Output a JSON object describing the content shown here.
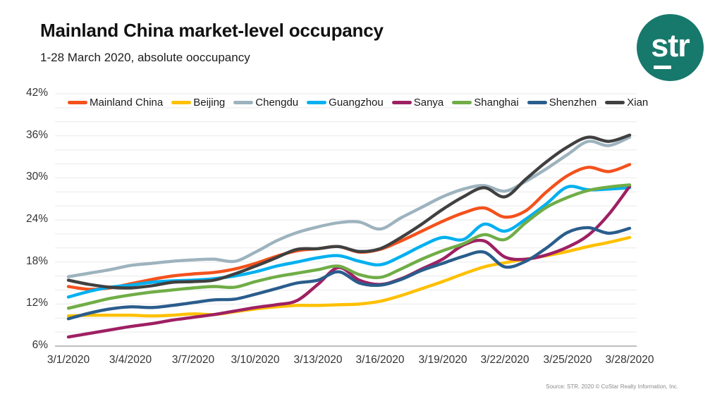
{
  "header": {
    "title": "Mainland China market-level occupancy",
    "subtitle": "1-28 March 2020, absolute ooccupancy"
  },
  "logo": {
    "text": "str",
    "color": "#17796B"
  },
  "source_note": "Source: STR. 2020 © CoStar Realty Information, Inc.",
  "chart_data": {
    "type": "line",
    "title": "Mainland China market-level occupancy",
    "subtitle": "1-28 March 2020, absolute ooccupancy",
    "x_start": "3/1/2020",
    "x_end": "3/28/2020",
    "points_per_series": 28,
    "x_labels": [
      "3/1/2020",
      "3/4/2020",
      "3/7/2020",
      "3/10/2020",
      "3/13/2020",
      "3/16/2020",
      "3/19/2020",
      "3/22/2020",
      "3/25/2020",
      "3/28/2020"
    ],
    "x_label_days": [
      1,
      4,
      7,
      10,
      13,
      16,
      19,
      22,
      25,
      28
    ],
    "y_ticks": [
      "42%",
      "36%",
      "30%",
      "24%",
      "18%",
      "12%",
      "6%"
    ],
    "ylim": [
      6,
      42
    ],
    "ytick_step": 6,
    "minor_grid_step": 2,
    "grid": "horizontal",
    "legend_position": "top",
    "axis_color": "#A8A8A8",
    "grid_color": "#E9E9E9",
    "series": [
      {
        "name": "Mainland China",
        "color": "#F4511C",
        "values": [
          14.5,
          14.1,
          14.3,
          14.9,
          15.5,
          16.0,
          16.3,
          16.5,
          17.0,
          17.8,
          18.8,
          19.6,
          19.9,
          20.2,
          19.4,
          19.8,
          21.0,
          22.4,
          23.8,
          25.0,
          25.7,
          24.4,
          25.3,
          28.0,
          30.3,
          31.5,
          30.9,
          31.9
        ]
      },
      {
        "name": "Beijing",
        "color": "#FFC000",
        "values": [
          10.3,
          10.4,
          10.4,
          10.4,
          10.3,
          10.4,
          10.6,
          10.5,
          10.9,
          11.3,
          11.6,
          11.8,
          11.8,
          11.9,
          12.0,
          12.4,
          13.2,
          14.2,
          15.2,
          16.3,
          17.3,
          17.9,
          18.4,
          18.9,
          19.5,
          20.2,
          20.8,
          21.5
        ]
      },
      {
        "name": "Chengdu",
        "color": "#9DB3BE",
        "values": [
          15.9,
          16.4,
          16.9,
          17.5,
          17.8,
          18.1,
          18.3,
          18.4,
          18.1,
          19.4,
          21.0,
          22.2,
          23.0,
          23.6,
          23.7,
          22.7,
          24.3,
          25.8,
          27.3,
          28.4,
          28.9,
          28.1,
          29.5,
          31.3,
          33.3,
          35.2,
          34.6,
          35.8
        ]
      },
      {
        "name": "Guangzhou",
        "color": "#00B0F0",
        "values": [
          13.0,
          13.8,
          14.4,
          14.7,
          15.1,
          15.3,
          15.4,
          15.6,
          16.0,
          16.6,
          17.4,
          18.0,
          18.6,
          18.9,
          18.1,
          17.6,
          18.8,
          20.3,
          21.5,
          21.2,
          23.4,
          22.4,
          24.1,
          26.3,
          28.7,
          28.3,
          28.4,
          28.6
        ]
      },
      {
        "name": "Sanya",
        "color": "#9E2063",
        "values": [
          7.3,
          7.8,
          8.3,
          8.8,
          9.2,
          9.7,
          10.1,
          10.5,
          11.0,
          11.5,
          11.9,
          12.5,
          14.8,
          17.2,
          15.4,
          14.8,
          15.6,
          17.0,
          18.4,
          20.4,
          21.0,
          18.7,
          18.4,
          19.0,
          20.1,
          21.8,
          24.8,
          28.8
        ]
      },
      {
        "name": "Shanghai",
        "color": "#70AD47",
        "values": [
          11.4,
          12.1,
          12.8,
          13.3,
          13.7,
          14.0,
          14.3,
          14.5,
          14.4,
          15.2,
          15.9,
          16.4,
          16.9,
          17.4,
          16.2,
          15.8,
          17.0,
          18.4,
          19.6,
          20.6,
          21.9,
          21.2,
          23.6,
          25.8,
          27.2,
          28.2,
          28.7,
          29.0
        ]
      },
      {
        "name": "Shenzhen",
        "color": "#2A5D8C",
        "values": [
          9.9,
          10.7,
          11.3,
          11.6,
          11.5,
          11.8,
          12.2,
          12.6,
          12.7,
          13.4,
          14.2,
          15.0,
          15.4,
          16.6,
          15.0,
          14.7,
          15.5,
          16.8,
          17.8,
          18.8,
          19.4,
          17.3,
          18.1,
          20.0,
          22.2,
          22.9,
          22.1,
          22.8
        ]
      },
      {
        "name": "Xian",
        "color": "#404040",
        "values": [
          15.4,
          14.8,
          14.4,
          14.3,
          14.6,
          15.1,
          15.2,
          15.4,
          16.3,
          17.4,
          18.6,
          19.8,
          19.9,
          20.2,
          19.5,
          19.9,
          21.5,
          23.4,
          25.5,
          27.3,
          28.6,
          27.3,
          29.8,
          32.3,
          34.4,
          35.8,
          35.2,
          36.1
        ]
      }
    ]
  }
}
